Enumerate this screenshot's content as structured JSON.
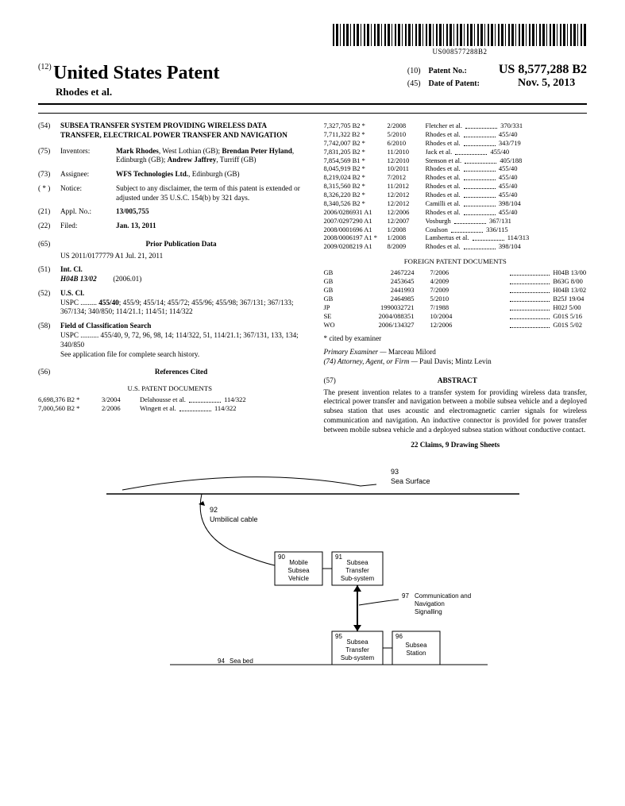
{
  "barcode_text": "US008577288B2",
  "header": {
    "country_num": "(12)",
    "country": "United States Patent",
    "authors": "Rhodes et al.",
    "pnum_code": "(10)",
    "pnum_label": "Patent No.:",
    "pnum": "US 8,577,288 B2",
    "pdate_code": "(45)",
    "pdate_label": "Date of Patent:",
    "pdate": "Nov. 5, 2013"
  },
  "left": {
    "f54_num": "(54)",
    "f54_title": "SUBSEA TRANSFER SYSTEM PROVIDING WIRELESS DATA TRANSFER, ELECTRICAL POWER TRANSFER AND NAVIGATION",
    "f75_num": "(75)",
    "f75_lbl": "Inventors:",
    "f75_val": "Mark Rhodes, West Lothian (GB); Brendan Peter Hyland, Edinburgh (GB); Andrew Jaffrey, Turriff (GB)",
    "f73_num": "(73)",
    "f73_lbl": "Assignee:",
    "f73_val": "WFS Technologies Ltd., Edinburgh (GB)",
    "fnot_num": "( * )",
    "fnot_lbl": "Notice:",
    "fnot_val": "Subject to any disclaimer, the term of this patent is extended or adjusted under 35 U.S.C. 154(b) by 321 days.",
    "f21_num": "(21)",
    "f21_lbl": "Appl. No.:",
    "f21_val": "13/005,755",
    "f22_num": "(22)",
    "f22_lbl": "Filed:",
    "f22_val": "Jan. 13, 2011",
    "f65_num": "(65)",
    "f65_head": "Prior Publication Data",
    "f65_val": "US 2011/0177779 A1     Jul. 21, 2011",
    "f51_num": "(51)",
    "f51_lbl": "Int. Cl.",
    "f51_line": "H04B 13/02",
    "f51_year": "(2006.01)",
    "f52_num": "(52)",
    "f52_lbl": "U.S. Cl.",
    "f52_val": "USPC ......... 455/40; 455/9; 455/14; 455/72; 455/96; 455/98; 367/131; 367/133; 367/134; 340/850; 114/21.1; 114/51; 114/322",
    "f58_num": "(58)",
    "f58_lbl": "Field of Classification Search",
    "f58_val": "USPC .......... 455/40, 9, 72, 96, 98, 14; 114/322, 51, 114/21.1; 367/131, 133, 134; 340/850",
    "f58_note": "See application file for complete search history.",
    "f56_num": "(56)",
    "f56_head": "References Cited",
    "us_docs_head": "U.S. PATENT DOCUMENTS"
  },
  "us_refs_left": [
    {
      "n": "6,698,376 B2 *",
      "d": "3/2004",
      "a": "Delahousse et al.",
      "c": "114/322"
    },
    {
      "n": "7,000,560 B2 *",
      "d": "2/2006",
      "a": "Wingett et al.",
      "c": "114/322"
    }
  ],
  "us_refs_right": [
    {
      "n": "7,327,705 B2 *",
      "d": "2/2008",
      "a": "Fletcher et al.",
      "c": "370/331"
    },
    {
      "n": "7,711,322 B2 *",
      "d": "5/2010",
      "a": "Rhodes et al.",
      "c": "455/40"
    },
    {
      "n": "7,742,007 B2 *",
      "d": "6/2010",
      "a": "Rhodes et al.",
      "c": "343/719"
    },
    {
      "n": "7,831,205 B2 *",
      "d": "11/2010",
      "a": "Jack et al.",
      "c": "455/40"
    },
    {
      "n": "7,854,569 B1 *",
      "d": "12/2010",
      "a": "Stenson et al.",
      "c": "405/188"
    },
    {
      "n": "8,045,919 B2 *",
      "d": "10/2011",
      "a": "Rhodes et al.",
      "c": "455/40"
    },
    {
      "n": "8,219,024 B2 *",
      "d": "7/2012",
      "a": "Rhodes et al.",
      "c": "455/40"
    },
    {
      "n": "8,315,560 B2 *",
      "d": "11/2012",
      "a": "Rhodes et al.",
      "c": "455/40"
    },
    {
      "n": "8,326,220 B2 *",
      "d": "12/2012",
      "a": "Rhodes et al.",
      "c": "455/40"
    },
    {
      "n": "8,340,526 B2 *",
      "d": "12/2012",
      "a": "Camilli et al.",
      "c": "398/104"
    },
    {
      "n": "2006/0286931 A1",
      "d": "12/2006",
      "a": "Rhodes et al.",
      "c": "455/40"
    },
    {
      "n": "2007/0297290 A1",
      "d": "12/2007",
      "a": "Vosburgh",
      "c": "367/131"
    },
    {
      "n": "2008/0001696 A1",
      "d": "1/2008",
      "a": "Coulson",
      "c": "336/115"
    },
    {
      "n": "2008/0006197 A1 *",
      "d": "1/2008",
      "a": "Lambertus et al.",
      "c": "114/313"
    },
    {
      "n": "2009/0208219 A1",
      "d": "8/2009",
      "a": "Rhodes et al.",
      "c": "398/104"
    }
  ],
  "foreign_head": "FOREIGN PATENT DOCUMENTS",
  "foreign_refs": [
    {
      "cc": "GB",
      "n": "2467224",
      "d": "7/2006",
      "c": "H04B 13/00"
    },
    {
      "cc": "GB",
      "n": "2453645",
      "d": "4/2009",
      "c": "B63G 8/00"
    },
    {
      "cc": "GB",
      "n": "2441993",
      "d": "7/2009",
      "c": "H04B 13/02"
    },
    {
      "cc": "GB",
      "n": "2464985",
      "d": "5/2010",
      "c": "B25J 19/04"
    },
    {
      "cc": "JP",
      "n": "1990032721",
      "d": "7/1988",
      "c": "H02J 5/00"
    },
    {
      "cc": "SE",
      "n": "2004/088351",
      "d": "10/2004",
      "c": "G01S 5/16"
    },
    {
      "cc": "WO",
      "n": "2006/134327",
      "d": "12/2006",
      "c": "G01S 5/02"
    }
  ],
  "cited_note": "* cited by examiner",
  "examiner_lbl": "Primary Examiner —",
  "examiner": "Marceau Milord",
  "attorney_lbl": "(74)  Attorney, Agent, or Firm —",
  "attorney": "Paul Davis; Mintz Levin",
  "abstract_num": "(57)",
  "abstract_head": "ABSTRACT",
  "abstract": "The present invention relates to a transfer system for providing wireless data transfer, electrical power transfer and navigation between a mobile subsea vehicle and a deployed subsea station that uses acoustic and electromagnetic carrier signals for wireless communication and navigation. An inductive connector is provided for power transfer between mobile subsea vehicle and a deployed subsea station without conductive contact.",
  "claims": "22 Claims, 9 Drawing Sheets",
  "fig": {
    "n93": "93",
    "sea_surface": "Sea Surface",
    "n92": "92",
    "umbilical": "Umbilical cable",
    "n90": "90",
    "box90": "Mobile\nSubsea\nVehicle",
    "n91": "91",
    "box91": "Subsea\nTransfer\nSub-system",
    "n97": "97",
    "comm": "Communication and\nNavigation\nSignalling",
    "n95": "95",
    "box95": "Subsea\nTransfer\nSub-system",
    "n96": "96",
    "box96": "Subsea\nStation",
    "n94": "94",
    "seabed": "Sea bed"
  }
}
